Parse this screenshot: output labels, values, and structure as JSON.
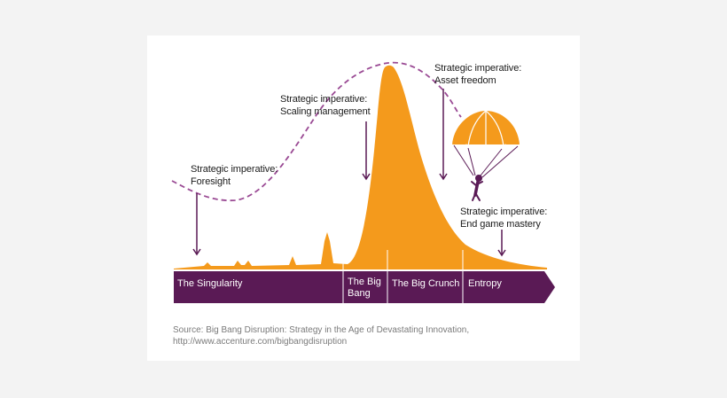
{
  "imperatives": {
    "foresight": {
      "line1": "Strategic imperative:",
      "line2": "Foresight"
    },
    "scaling": {
      "line1": "Strategic imperative:",
      "line2": "Scaling management"
    },
    "asset": {
      "line1": "Strategic imperative:",
      "line2": "Asset freedom"
    },
    "endgame": {
      "line1": "Strategic imperative:",
      "line2": "End game mastery"
    }
  },
  "stages": {
    "singularity": "The Singularity",
    "big_bang_line1": "The Big",
    "big_bang_line2": "Bang",
    "big_crunch": "The Big Crunch",
    "entropy": "Entropy"
  },
  "source": {
    "line1": "Source: Big Bang Disruption: Strategy in the Age of Devastating Innovation,",
    "line2": "http://www.accenture.com/bigbangdisruption"
  },
  "colors": {
    "orange": "#f49a1c",
    "purple": "#5a1a55",
    "page": "#f3f3f3",
    "card": "#ffffff"
  },
  "icons": [
    "parachute-icon",
    "person-icon",
    "arrow-down-icon"
  ]
}
